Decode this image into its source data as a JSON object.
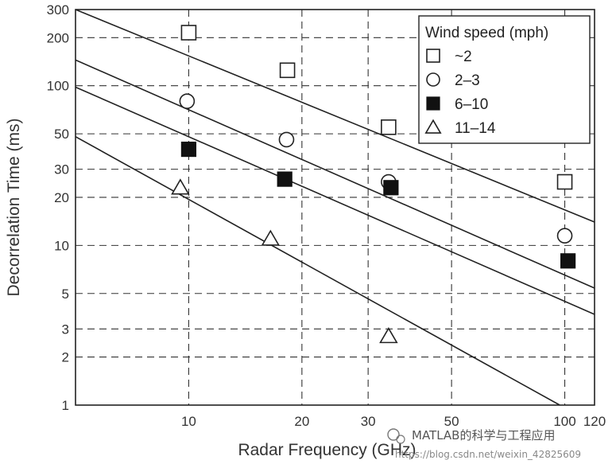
{
  "chart_data": {
    "type": "scatter",
    "xlabel": "Radar Frequency (GHz)",
    "ylabel": "Decorrelation Time (ms)",
    "x_scale": "log",
    "y_scale": "log",
    "xlim": [
      5,
      120
    ],
    "ylim": [
      1,
      300
    ],
    "grid": true,
    "x_ticks": [
      10,
      20,
      30,
      50,
      100,
      120
    ],
    "x_tick_labels": [
      "10",
      "20",
      "30",
      "50",
      "100",
      "120"
    ],
    "y_ticks": [
      1,
      2,
      3,
      5,
      10,
      20,
      30,
      50,
      100,
      200,
      300
    ],
    "y_tick_labels": [
      "1",
      "2",
      "3",
      "5",
      "10",
      "20",
      "30",
      "50",
      "100",
      "200",
      "300"
    ],
    "legend": {
      "title": "Wind speed (mph)",
      "position": "top-right"
    },
    "series": [
      {
        "name": "~2",
        "marker": "square-open",
        "points": [
          [
            10,
            215
          ],
          [
            18.3,
            125
          ],
          [
            34,
            55
          ],
          [
            100,
            25
          ]
        ]
      },
      {
        "name": "2–3",
        "marker": "circle-open",
        "points": [
          [
            9.9,
            80
          ],
          [
            18.2,
            46
          ],
          [
            34,
            25
          ],
          [
            100,
            11.5
          ]
        ]
      },
      {
        "name": "6–10",
        "marker": "square-filled",
        "points": [
          [
            10,
            40
          ],
          [
            18,
            26
          ],
          [
            34.5,
            23
          ],
          [
            102,
            8
          ]
        ]
      },
      {
        "name": "11–14",
        "marker": "triangle-open",
        "points": [
          [
            9.5,
            23
          ],
          [
            16.5,
            11
          ],
          [
            34,
            2.7
          ]
        ]
      }
    ],
    "fit_lines": [
      {
        "series": "~2",
        "from": [
          5,
          300
        ],
        "to": [
          120,
          14
        ]
      },
      {
        "series": "2–3",
        "from": [
          5,
          145
        ],
        "to": [
          120,
          5.4
        ]
      },
      {
        "series": "6–10",
        "from": [
          5,
          98
        ],
        "to": [
          120,
          3.7
        ]
      },
      {
        "series": "11–14",
        "from": [
          5,
          48
        ],
        "to": [
          97,
          1
        ]
      }
    ]
  },
  "watermark": {
    "label": "MATLAB的科学与工程应用",
    "url": "https://blog.csdn.net/weixin_42825609"
  }
}
